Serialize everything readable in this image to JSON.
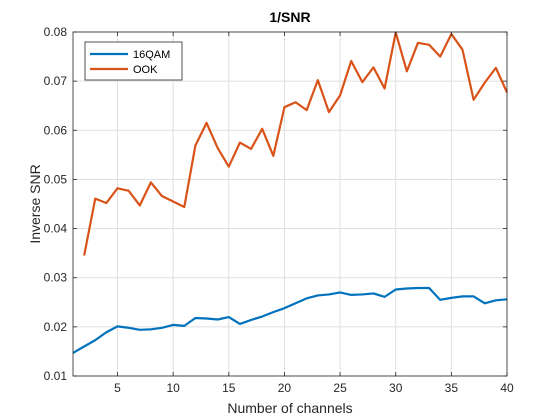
{
  "chart_data": {
    "type": "line",
    "title": "1/SNR",
    "xlabel": "Number of channels",
    "ylabel": "Inverse SNR",
    "xlim": [
      1,
      40
    ],
    "ylim": [
      0.01,
      0.08
    ],
    "xticks": [
      5,
      10,
      15,
      20,
      25,
      30,
      35,
      40
    ],
    "yticks": [
      0.01,
      0.02,
      0.03,
      0.04,
      0.05,
      0.06,
      0.07,
      0.08
    ],
    "xtick_labels": [
      "5",
      "10",
      "15",
      "20",
      "25",
      "30",
      "35",
      "40"
    ],
    "ytick_labels": [
      "0.01",
      "0.02",
      "0.03",
      "0.04",
      "0.05",
      "0.06",
      "0.07",
      "0.08"
    ],
    "grid": true,
    "legend_position": "top-left",
    "series": [
      {
        "name": "16QAM",
        "color": "#0072BD",
        "x": [
          1,
          2,
          3,
          4,
          5,
          6,
          7,
          8,
          9,
          10,
          11,
          12,
          13,
          14,
          15,
          16,
          17,
          18,
          19,
          20,
          21,
          22,
          23,
          24,
          25,
          26,
          27,
          28,
          29,
          30,
          31,
          32,
          33,
          34,
          35,
          36,
          37,
          38,
          39,
          40
        ],
        "y": [
          0.0147,
          0.016,
          0.0173,
          0.0189,
          0.0201,
          0.0198,
          0.0194,
          0.0195,
          0.0198,
          0.0204,
          0.0202,
          0.0218,
          0.0217,
          0.0215,
          0.022,
          0.0206,
          0.0214,
          0.0221,
          0.023,
          0.0238,
          0.0248,
          0.0258,
          0.0264,
          0.0266,
          0.027,
          0.0265,
          0.0266,
          0.0268,
          0.0261,
          0.0276,
          0.0278,
          0.0279,
          0.0279,
          0.0255,
          0.0259,
          0.0262,
          0.0262,
          0.0248,
          0.0254,
          0.0256
        ]
      },
      {
        "name": "OOK",
        "color": "#D95319",
        "x": [
          2,
          3,
          4,
          5,
          6,
          7,
          8,
          9,
          10,
          11,
          12,
          13,
          14,
          15,
          16,
          17,
          18,
          19,
          20,
          21,
          22,
          23,
          24,
          25,
          26,
          27,
          28,
          29,
          30,
          31,
          32,
          33,
          34,
          35,
          36,
          37,
          38,
          39,
          40
        ],
        "y": [
          0.0345,
          0.0461,
          0.0452,
          0.0482,
          0.0477,
          0.0447,
          0.0494,
          0.0466,
          0.0455,
          0.0444,
          0.0569,
          0.0615,
          0.0564,
          0.0526,
          0.0575,
          0.0562,
          0.0603,
          0.0548,
          0.0647,
          0.0657,
          0.0641,
          0.0702,
          0.0637,
          0.0671,
          0.0741,
          0.0698,
          0.0728,
          0.0685,
          0.0799,
          0.072,
          0.0778,
          0.0774,
          0.075,
          0.0796,
          0.0764,
          0.0662,
          0.0697,
          0.0727,
          0.0677
        ]
      }
    ]
  }
}
